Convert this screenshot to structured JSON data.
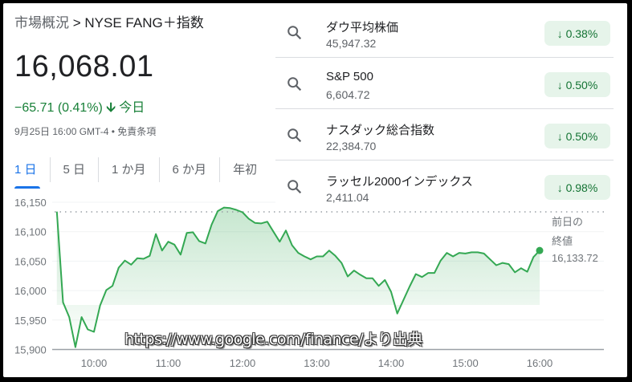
{
  "breadcrumb": {
    "root": "市場概況",
    "separator": ">",
    "current": "NYSE FANG＋指数"
  },
  "quote": {
    "price": "16,068.01",
    "change": "−65.71 (0.41%)",
    "direction": "down",
    "period": "今日",
    "timestamp": "9月25日 16:00 GMT-4",
    "disclaimer": "免責条項"
  },
  "tabs": [
    {
      "label": "1 日",
      "active": true
    },
    {
      "label": "5 日"
    },
    {
      "label": "1 か月"
    },
    {
      "label": "6 か月"
    },
    {
      "label": "年初"
    }
  ],
  "suggestions": [
    {
      "name": "ダウ平均株価",
      "value": "45,947.32",
      "change": "0.38%",
      "icon": "search-icon"
    },
    {
      "name": "S&P 500",
      "value": "6,604.72",
      "change": "0.50%",
      "icon": "search-icon"
    },
    {
      "name": "ナスダック総合指数",
      "value": "22,384.70",
      "change": "0.50%",
      "icon": "search-icon"
    },
    {
      "name": "ラッセル2000インデックス",
      "value": "2,411.04",
      "change": "0.98%",
      "icon": "search-icon"
    }
  ],
  "colors": {
    "line": "#34a853",
    "down": "#188038",
    "badge_bg": "#e6f4ea",
    "tab_active": "#1a73e8"
  },
  "prev_close": {
    "label_line1": "前日の",
    "label_line2": "終値",
    "value": "16,133.72"
  },
  "watermark": "https://www.google.com/finance/より出典",
  "chart_data": {
    "type": "area",
    "yticks": [
      "16,150",
      "16,100",
      "16,050",
      "16,000",
      "15,950",
      "15,900"
    ],
    "ytick_values": [
      16150,
      16100,
      16050,
      16000,
      15950,
      15900
    ],
    "xticks": [
      "10:00",
      "11:00",
      "12:00",
      "13:00",
      "14:00",
      "15:00",
      "16:00"
    ],
    "ylim": [
      15900,
      16150
    ],
    "xlim": [
      "9:30",
      "16:00"
    ],
    "grid": true,
    "reference_line": 16133.72,
    "x": [
      "9:30",
      "9:35",
      "9:40",
      "9:45",
      "9:50",
      "9:55",
      "10:00",
      "10:05",
      "10:10",
      "10:15",
      "10:20",
      "10:25",
      "10:30",
      "10:35",
      "10:40",
      "10:45",
      "10:50",
      "10:55",
      "11:00",
      "11:05",
      "11:10",
      "11:15",
      "11:20",
      "11:25",
      "11:30",
      "11:35",
      "11:40",
      "11:45",
      "11:50",
      "11:55",
      "12:00",
      "12:05",
      "12:10",
      "12:15",
      "12:20",
      "12:25",
      "12:30",
      "12:35",
      "12:40",
      "12:45",
      "12:50",
      "12:55",
      "13:00",
      "13:05",
      "13:10",
      "13:15",
      "13:20",
      "13:25",
      "13:30",
      "13:35",
      "13:40",
      "13:45",
      "13:50",
      "13:55",
      "14:00",
      "14:05",
      "14:10",
      "14:15",
      "14:20",
      "14:25",
      "14:30",
      "14:35",
      "14:40",
      "14:45",
      "14:50",
      "14:55",
      "15:00",
      "15:05",
      "15:10",
      "15:15",
      "15:20",
      "15:25",
      "15:30",
      "15:35",
      "15:40",
      "15:45",
      "15:50",
      "15:55",
      "16:00"
    ],
    "values": [
      16134,
      15980,
      15955,
      15904,
      15955,
      15934,
      15930,
      15975,
      16001,
      16008,
      16039,
      16051,
      16044,
      16055,
      16054,
      16059,
      16096,
      16068,
      16083,
      16078,
      16061,
      16098,
      16099,
      16084,
      16080,
      16112,
      16135,
      16141,
      16140,
      16137,
      16133,
      16122,
      16115,
      16114,
      16117,
      16100,
      16083,
      16102,
      16077,
      16064,
      16058,
      16053,
      16058,
      16058,
      16068,
      16059,
      16047,
      16024,
      16034,
      16027,
      16021,
      16021,
      16008,
      16018,
      15998,
      15961,
      15984,
      16007,
      16028,
      16023,
      16030,
      16030,
      16051,
      16064,
      16058,
      16064,
      16063,
      16065,
      16065,
      16063,
      16053,
      16043,
      16047,
      16045,
      16031,
      16038,
      16032,
      16057,
      16068.01
    ]
  }
}
